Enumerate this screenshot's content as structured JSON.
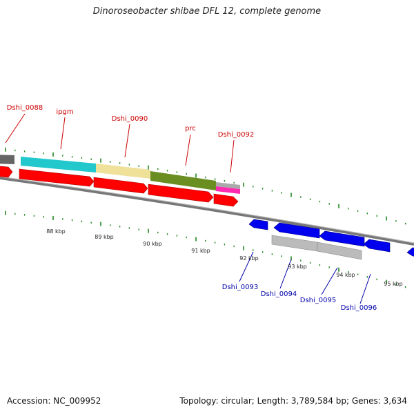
{
  "title": "Dinoroseobacter shibae DFL 12, complete genome",
  "footer": {
    "accession": "Accession: NC_009952",
    "summary": "Topology: circular; Length: 3,789,584 bp; Genes: 3,634"
  },
  "colors": {
    "forward_cds": "#ff0000",
    "reverse_cds": "#0000ee",
    "backbone": "#888888",
    "tick": "#228822",
    "label_forward": "#cc0000",
    "label_reverse": "#0000aa"
  },
  "scale_labels": [
    "88 kbp",
    "89 kbp",
    "90 kbp",
    "91 kbp",
    "92 kbp",
    "93 kbp",
    "94 kbp",
    "95 kbp"
  ],
  "forward_labels": [
    "Dshi_0088",
    "ipgm",
    "Dshi_0090",
    "prc",
    "Dshi_0092"
  ],
  "reverse_labels": [
    "Dshi_0093",
    "Dshi_0094",
    "Dshi_0095",
    "Dshi_0096"
  ]
}
